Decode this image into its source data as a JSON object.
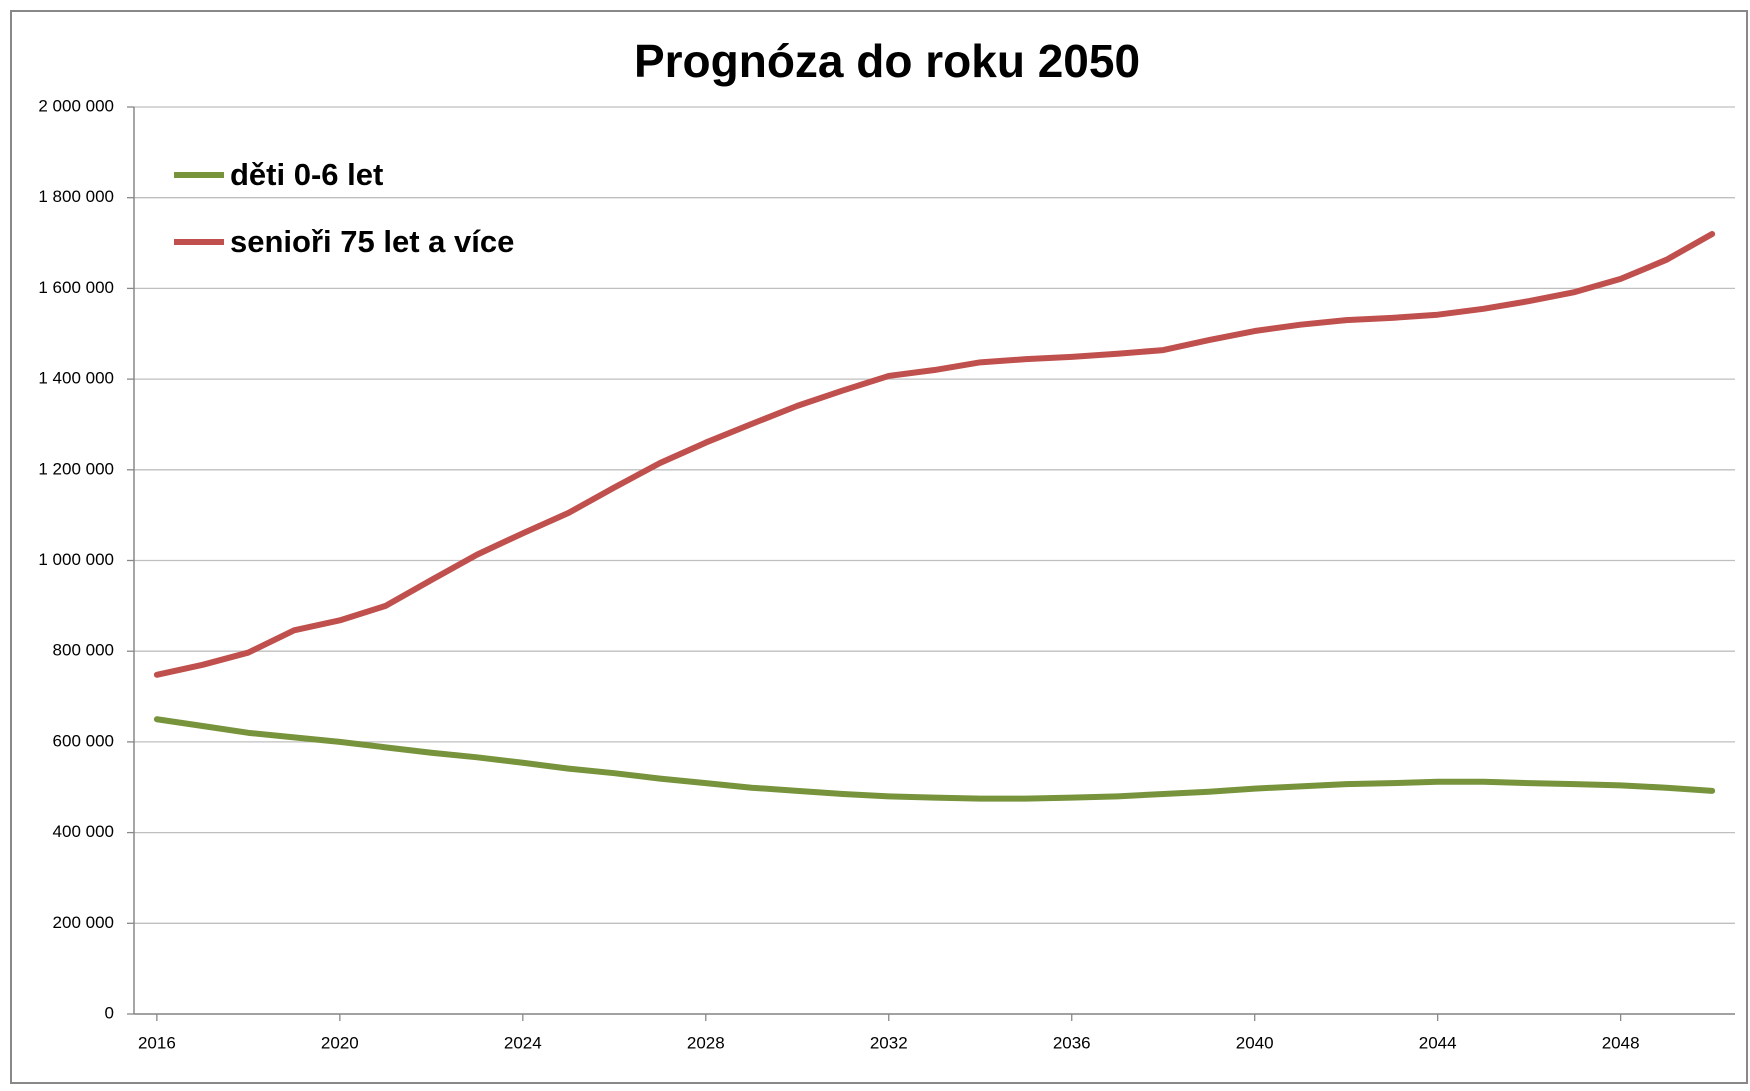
{
  "chart_data": {
    "type": "line",
    "title": "Prognóza do roku 2050",
    "x": [
      2016,
      2017,
      2018,
      2019,
      2020,
      2021,
      2022,
      2023,
      2024,
      2025,
      2026,
      2027,
      2028,
      2029,
      2030,
      2031,
      2032,
      2033,
      2034,
      2035,
      2036,
      2037,
      2038,
      2039,
      2040,
      2041,
      2042,
      2043,
      2044,
      2045,
      2046,
      2047,
      2048,
      2049,
      2050
    ],
    "series": [
      {
        "name": "děti 0-6 let",
        "color": "#77933c",
        "values": [
          650000,
          635000,
          620000,
          610000,
          600000,
          588000,
          576000,
          566000,
          554000,
          541000,
          531000,
          519000,
          509000,
          499000,
          492000,
          485000,
          480000,
          477000,
          475000,
          475000,
          477000,
          480000,
          485000,
          490000,
          497000,
          502000,
          507000,
          509000,
          512000,
          512000,
          509000,
          507000,
          504000,
          499000,
          492000
        ]
      },
      {
        "name": "senioři 75 let a více",
        "color": "#c0504d",
        "values": [
          748000,
          770000,
          797000,
          846000,
          868000,
          900000,
          957000,
          1013000,
          1060000,
          1105000,
          1161000,
          1215000,
          1260000,
          1301000,
          1341000,
          1375000,
          1407000,
          1420000,
          1437000,
          1444000,
          1449000,
          1456000,
          1464000,
          1486000,
          1506000,
          1520000,
          1530000,
          1535000,
          1542000,
          1555000,
          1572000,
          1592000,
          1621000,
          1663000,
          1720000
        ]
      }
    ],
    "xlim": [
      2015.5,
      2050.5
    ],
    "xticks": [
      2016,
      2020,
      2024,
      2028,
      2032,
      2036,
      2040,
      2044,
      2048
    ],
    "ylim": [
      0,
      2000000
    ],
    "yticks": [
      0,
      {
        "value": 200000,
        "label": "200 000"
      },
      {
        "value": 400000,
        "label": "400 000"
      },
      {
        "value": 600000,
        "label": "600 000"
      },
      {
        "value": 800000,
        "label": "800 000"
      },
      {
        "value": 1000000,
        "label": "1 000 000"
      },
      {
        "value": 1200000,
        "label": "1 200 000"
      },
      {
        "value": 1400000,
        "label": "1 400 000"
      },
      {
        "value": 1600000,
        "label": "1 600 000"
      },
      {
        "value": 1800000,
        "label": "1 800 000"
      },
      {
        "value": 2000000,
        "label": "2 000 000"
      }
    ],
    "grid": true,
    "legend": "upper left"
  }
}
